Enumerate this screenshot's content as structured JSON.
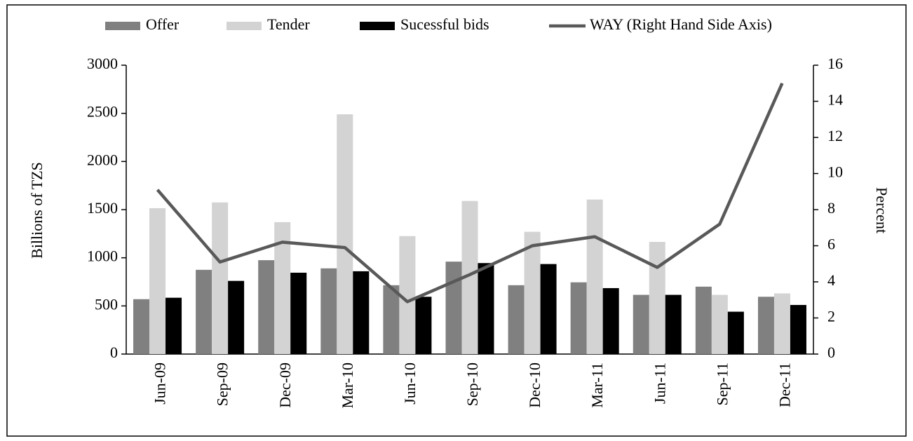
{
  "chart_data": {
    "type": "bar",
    "categories": [
      "Jun-09",
      "Sep-09",
      "Dec-09",
      "Mar-10",
      "Jun-10",
      "Sep-10",
      "Dec-10",
      "Mar-11",
      "Jun-11",
      "Sep-11",
      "Dec-11"
    ],
    "series": [
      {
        "name": "Offer",
        "color": "#808080",
        "values": [
          570,
          875,
          975,
          890,
          715,
          960,
          715,
          745,
          615,
          700,
          595
        ]
      },
      {
        "name": "Tender",
        "color": "#d3d3d3",
        "values": [
          1515,
          1575,
          1370,
          2490,
          1225,
          1590,
          1270,
          1605,
          1165,
          615,
          630
        ]
      },
      {
        "name": "Sucessful bids",
        "color": "#000000",
        "values": [
          585,
          760,
          845,
          860,
          595,
          945,
          935,
          685,
          615,
          440,
          510
        ]
      },
      {
        "name": "WAY (Right Hand Side Axis)",
        "color": "#595959",
        "type": "line",
        "axis": "y2",
        "values": [
          9.1,
          5.1,
          6.2,
          5.9,
          2.9,
          4.4,
          6.0,
          6.5,
          4.8,
          7.2,
          15.0
        ]
      }
    ],
    "ylabel": "Billions of TZS",
    "y2label": "Percent",
    "ylim": [
      0,
      3000
    ],
    "yticks": [
      0,
      500,
      1000,
      1500,
      2000,
      2500,
      3000
    ],
    "y2lim": [
      0,
      16
    ],
    "y2ticks": [
      0,
      2,
      4,
      6,
      8,
      10,
      12,
      14,
      16
    ],
    "legend": "top"
  }
}
